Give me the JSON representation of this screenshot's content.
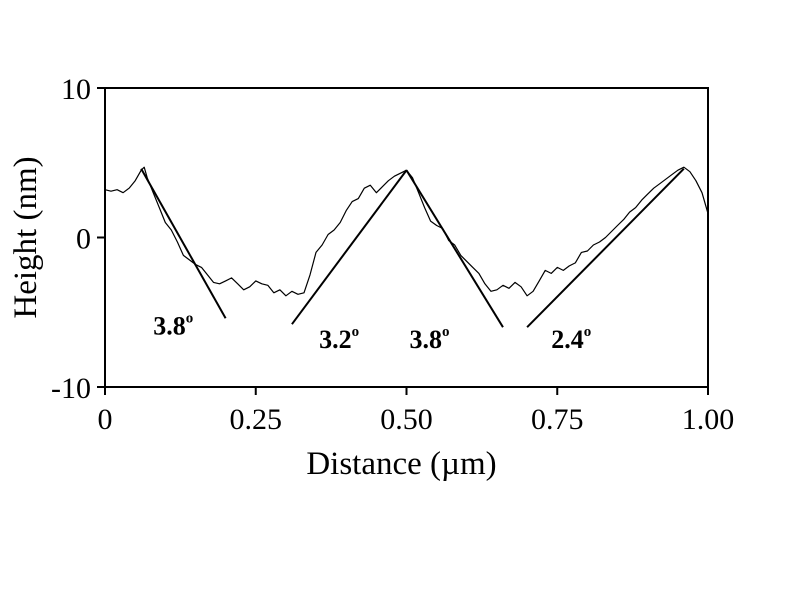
{
  "chart_data": {
    "type": "line",
    "title": "",
    "xlabel": "Distance (µm)",
    "ylabel": "Height (nm)",
    "xlim": [
      0,
      1.0
    ],
    "ylim": [
      -10,
      10
    ],
    "xticks": [
      0,
      0.25,
      0.5,
      0.75,
      1.0
    ],
    "xtick_labels": [
      "0",
      "0.25",
      "0.50",
      "0.75",
      "1.00"
    ],
    "yticks": [
      -10,
      0,
      10
    ],
    "ytick_labels": [
      "-10",
      "0",
      "10"
    ],
    "grid": false,
    "legend": "none",
    "series": [
      {
        "x": [
          0.0,
          0.01,
          0.02,
          0.03,
          0.04,
          0.05,
          0.06,
          0.065,
          0.07,
          0.08,
          0.09,
          0.1,
          0.11,
          0.12,
          0.13,
          0.14,
          0.15,
          0.16,
          0.17,
          0.18,
          0.19,
          0.2,
          0.21,
          0.22,
          0.23,
          0.24,
          0.25,
          0.26,
          0.27,
          0.28,
          0.29,
          0.3,
          0.31,
          0.32,
          0.33,
          0.34,
          0.35,
          0.36,
          0.37,
          0.38,
          0.39,
          0.4,
          0.41,
          0.42,
          0.43,
          0.44,
          0.45,
          0.46,
          0.47,
          0.48,
          0.49,
          0.5,
          0.51,
          0.52,
          0.53,
          0.54,
          0.55,
          0.56,
          0.57,
          0.58,
          0.59,
          0.6,
          0.61,
          0.62,
          0.63,
          0.64,
          0.65,
          0.66,
          0.67,
          0.68,
          0.69,
          0.7,
          0.71,
          0.72,
          0.73,
          0.74,
          0.75,
          0.76,
          0.77,
          0.78,
          0.79,
          0.8,
          0.81,
          0.82,
          0.83,
          0.84,
          0.85,
          0.86,
          0.87,
          0.88,
          0.89,
          0.9,
          0.91,
          0.92,
          0.93,
          0.94,
          0.95,
          0.96,
          0.97,
          0.98,
          0.99,
          1.0
        ],
        "y": [
          3.2,
          3.1,
          3.2,
          3.0,
          3.3,
          3.8,
          4.5,
          4.7,
          4.0,
          3.0,
          2.0,
          1.0,
          0.5,
          -0.3,
          -1.2,
          -1.5,
          -1.8,
          -2.0,
          -2.5,
          -3.0,
          -3.1,
          -2.9,
          -2.7,
          -3.1,
          -3.5,
          -3.3,
          -2.9,
          -3.1,
          -3.2,
          -3.7,
          -3.5,
          -3.9,
          -3.6,
          -3.8,
          -3.7,
          -2.5,
          -1.0,
          -0.5,
          0.2,
          0.5,
          1.0,
          1.8,
          2.4,
          2.6,
          3.3,
          3.5,
          3.0,
          3.4,
          3.8,
          4.1,
          4.3,
          4.5,
          4.0,
          3.0,
          2.0,
          1.1,
          0.8,
          0.6,
          -0.2,
          -0.5,
          -1.2,
          -1.6,
          -2.0,
          -2.4,
          -3.1,
          -3.6,
          -3.5,
          -3.2,
          -3.4,
          -3.0,
          -3.3,
          -3.9,
          -3.6,
          -2.9,
          -2.2,
          -2.4,
          -2.0,
          -2.2,
          -1.9,
          -1.7,
          -1.0,
          -0.9,
          -0.5,
          -0.3,
          0.0,
          0.4,
          0.8,
          1.2,
          1.7,
          2.0,
          2.5,
          2.9,
          3.3,
          3.6,
          3.9,
          4.2,
          4.5,
          4.7,
          4.4,
          3.8,
          3.0,
          1.6
        ]
      }
    ],
    "fit_lines": [
      {
        "label": "3.8",
        "x": [
          0.06,
          0.2
        ],
        "y": [
          4.6,
          -5.4
        ]
      },
      {
        "label": "3.2",
        "x": [
          0.31,
          0.5
        ],
        "y": [
          -5.8,
          4.5
        ]
      },
      {
        "label": "3.8",
        "x": [
          0.5,
          0.66
        ],
        "y": [
          4.5,
          -6.0
        ]
      },
      {
        "label": "2.4",
        "x": [
          0.7,
          0.96
        ],
        "y": [
          -6.0,
          4.6
        ]
      }
    ],
    "angle_labels": [
      {
        "text": "3.8",
        "sup": "o",
        "x": 0.08,
        "y": -5.3
      },
      {
        "text": "3.2",
        "sup": "o",
        "x": 0.355,
        "y": -6.2
      },
      {
        "text": "3.8",
        "sup": "o",
        "x": 0.505,
        "y": -6.2
      },
      {
        "text": "2.4",
        "sup": "o",
        "x": 0.74,
        "y": -6.2
      }
    ]
  }
}
